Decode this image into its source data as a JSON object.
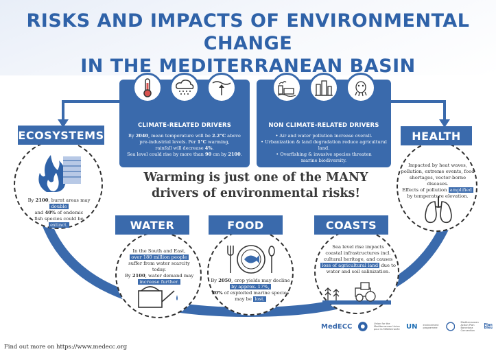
{
  "title": {
    "line1": "RISKS AND IMPACTS OF ENVIRONMENTAL CHANGE",
    "line2": "IN THE MEDITERRANEAN BASIN"
  },
  "climate": {
    "heading": "CLIMATE-RELATED DRIVERS",
    "l1a": "By ",
    "l1b": "2040",
    "l1c": ", mean temperature will be ",
    "l1d": "2.2°C",
    "l1e": " above",
    "l2a": "pre-industrial levels. Per ",
    "l2b": "1°C",
    "l2c": " warming,",
    "l3a": "rainfall will decrease ",
    "l3b": "4%",
    "l3c": ".",
    "l4a": "Sea level could rise by  more than ",
    "l4b": "90",
    "l4c": " cm by ",
    "l4d": "2100",
    "l4e": "."
  },
  "nonclimate": {
    "heading": "NON CLIMATE-RELATED DRIVERS",
    "b1": "• Air and water pollution increase overall.",
    "b2": "• Urbanization & land degradation reduce agricultural land.",
    "b3": "• Overfishing & invasive species threaten",
    "b3b": "marine biodiversity."
  },
  "center": {
    "line1": "Warming is just one of the MANY",
    "line2": "drivers of environmental risks!"
  },
  "ecosystems": {
    "label": "ECOSYSTEMS",
    "t1a": "By ",
    "t1b": "2100",
    "t1c": ", burnt areas may ",
    "t1d": "double",
    "t2a": "and ",
    "t2b": "40%",
    "t2c": " of endemic",
    "t3": "fish species could be",
    "t4": "extinct."
  },
  "health": {
    "label": "HEALTH",
    "t1": "Impacted by heat waves,",
    "t2": "pollution, extreme events, food",
    "t3": "shortages, vector-borne diseases.",
    "t4a": "Effects of pollution ",
    "t4b": "amplified",
    "t5": "by temperature elevation."
  },
  "water": {
    "label": "WATER",
    "t1": "In the South and East,",
    "t2": "over 180 million people",
    "t3": "suffer from water scarcity today.",
    "t4a": "By ",
    "t4b": "2100",
    "t4c": ", water demand may",
    "t5": "increase further."
  },
  "food": {
    "label": "FOOD",
    "t1a": "By ",
    "t1b": "2050",
    "t1c": ", crop yields may decline",
    "t2": "by approx. 17%,",
    "t3a": "20%",
    "t3b": " of exploited marine species",
    "t4a": "may be ",
    "t4b": "lost."
  },
  "coasts": {
    "label": "COASTS",
    "t1": "Sea level rise impacts",
    "t2": "coastal infrastructures incl.",
    "t3": "cultural heritage, and causes",
    "t4a": "loss of agricultural land",
    "t4b": " due to",
    "t5": "water and soil salinization."
  },
  "footer": {
    "text": "Find out more on https://www.medecc.org"
  },
  "logos": {
    "medecc": "MedECC",
    "ufm": "Union for the Mediterranean\nUnion pour la Méditerranée",
    "un": "UN",
    "un_sub": "environment\nprogramme",
    "map": "Mediterranean\nAction Plan\nBarcelona\nConvention",
    "plan": "Plan\nBleu"
  },
  "colors": {
    "primary": "#3a6aac",
    "title": "#2f62a8",
    "text": "#2b2b2b"
  }
}
